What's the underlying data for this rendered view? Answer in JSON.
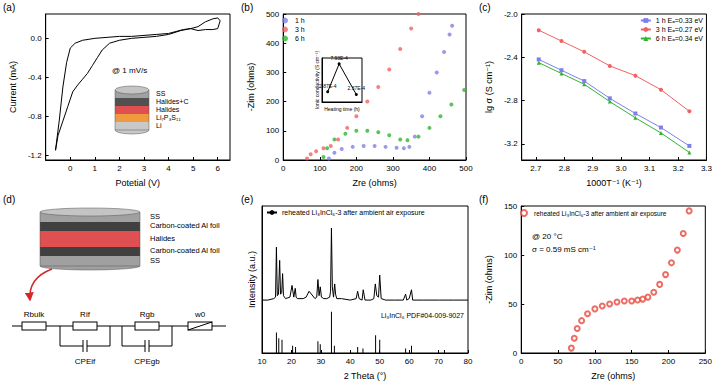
{
  "chart_data": [
    {
      "label": "(a)",
      "type": "line",
      "x_label": "Potetial (V)",
      "y_label": "Current (mA)",
      "xlim": [
        -1,
        6.5
      ],
      "xticks": [
        0,
        1,
        2,
        3,
        4,
        5,
        6
      ],
      "ylim": [
        -1.25,
        0.25
      ],
      "yticks": [
        -1.2,
        -0.8,
        -0.4,
        {
          "value": 0,
          "label": "0.0"
        }
      ],
      "annotations": [
        "@ 1 mV/s"
      ],
      "series": [
        {
          "color": "#000000",
          "x": [
            -0.6,
            -0.45,
            -0.3,
            -0.15,
            0,
            0.2,
            0.5,
            1,
            1.5,
            2,
            2.5,
            3,
            3.5,
            4,
            4.3,
            4.6,
            4.9,
            5.2,
            5.5,
            5.8,
            6.0,
            6.1,
            6.0,
            5.8,
            5.5,
            5.2,
            4.9,
            4.5,
            4,
            3.5,
            3,
            2.5,
            2,
            1.6,
            1.3,
            1.1,
            0.9,
            0.7,
            0.5,
            0.3,
            0.1,
            -0.1,
            -0.3,
            -0.5,
            -0.6
          ],
          "values": [
            -1.15,
            -0.85,
            -0.5,
            -0.25,
            -0.1,
            -0.05,
            -0.02,
            0,
            0.01,
            0.02,
            0.02,
            0.03,
            0.04,
            0.05,
            0.07,
            0.09,
            0.1,
            0.12,
            0.17,
            0.2,
            0.21,
            0.18,
            0.1,
            0.09,
            0.09,
            0.08,
            0.1,
            0.08,
            0.04,
            0.02,
            0.01,
            0,
            -0.02,
            -0.05,
            -0.12,
            -0.2,
            -0.28,
            -0.36,
            -0.42,
            -0.48,
            -0.55,
            -0.7,
            -0.85,
            -1.0,
            -1.15
          ]
        }
      ]
    },
    {
      "label": "(b)",
      "type": "scatter",
      "x_label": "Zre (ohms)",
      "y_label": "-Zim (ohms)",
      "xlim": [
        0,
        500
      ],
      "xticks": [
        0,
        100,
        200,
        300,
        400,
        500
      ],
      "ylim": [
        0,
        500
      ],
      "yticks": [
        0,
        100,
        200,
        300,
        400,
        500
      ],
      "legend": "upper left",
      "series": [
        {
          "name": "1 h",
          "color": "#7f7fea",
          "marker": "circle",
          "x": [
            125,
            140,
            160,
            190,
            220,
            250,
            280,
            310,
            330,
            345,
            360,
            380,
            400,
            420,
            440,
            455,
            462
          ],
          "values": [
            5,
            25,
            38,
            45,
            48,
            48,
            45,
            42,
            40,
            45,
            80,
            150,
            230,
            300,
            370,
            430,
            460
          ]
        },
        {
          "name": "3 h",
          "color": "#f26161",
          "marker": "circle",
          "x": [
            65,
            75,
            90,
            110,
            130,
            150,
            175,
            200,
            230,
            260,
            290,
            320,
            350,
            370
          ],
          "values": [
            5,
            20,
            30,
            40,
            48,
            70,
            110,
            150,
            200,
            250,
            310,
            380,
            450,
            500
          ]
        },
        {
          "name": "6 h",
          "color": "#2fb52f",
          "marker": "circle",
          "x": [
            110,
            120,
            140,
            170,
            200,
            230,
            260,
            290,
            320,
            340,
            370,
            400,
            430,
            460,
            495
          ],
          "values": [
            10,
            40,
            70,
            90,
            100,
            100,
            95,
            85,
            70,
            68,
            80,
            110,
            150,
            190,
            240
          ]
        }
      ],
      "inset": {
        "type": "line",
        "x_label": "Heating time (h)",
        "y_label": "Ionic conductivity (S cm⁻¹)",
        "xlim": [
          0,
          7
        ],
        "ylim": [
          0.0001,
          0.0009
        ],
        "tick_labels": false,
        "data_labels": true,
        "series": [
          {
            "color": "#000000",
            "marker": "circle",
            "x": [
              1,
              3,
              6
            ],
            "values": [
              0.000287,
              0.000793,
              0.000237
            ],
            "value_labels": [
              "2.87E-4",
              "7.93E-4",
              "2.37E-4"
            ]
          }
        ]
      }
    },
    {
      "label": "(c)",
      "type": "line",
      "x_label": "1000T⁻¹ (K⁻¹)",
      "y_label": "lg σ (S cm⁻¹)",
      "xlim": [
        2.65,
        3.3
      ],
      "xticks": [
        2.7,
        2.8,
        2.9,
        {
          "value": 3,
          "label": "3.0"
        },
        3.1,
        3.2,
        3.3
      ],
      "ylim": [
        -3.35,
        -2.0
      ],
      "yticks": [
        -3.2,
        -2.8,
        -2.4,
        {
          "value": -2,
          "label": "-2.0"
        }
      ],
      "legend": "upper right",
      "series": [
        {
          "name": "1 h Eₐ=0.33 eV",
          "color": "#7f7fea",
          "marker": "square",
          "x": [
            2.71,
            2.79,
            2.87,
            2.96,
            3.05,
            3.14,
            3.24
          ],
          "values": [
            -2.42,
            -2.52,
            -2.62,
            -2.78,
            -2.92,
            -3.05,
            -3.22
          ]
        },
        {
          "name": "3 h Eₐ=0.27 eV",
          "color": "#f26161",
          "marker": "circle",
          "x": [
            2.71,
            2.79,
            2.87,
            2.96,
            3.05,
            3.14,
            3.24
          ],
          "values": [
            -2.15,
            -2.25,
            -2.35,
            -2.48,
            -2.57,
            -2.7,
            -2.9
          ]
        },
        {
          "name": "6 h Eₐ=0.34 eV",
          "color": "#2fb52f",
          "marker": "triangle",
          "x": [
            2.71,
            2.79,
            2.87,
            2.96,
            3.05,
            3.14,
            3.24
          ],
          "values": [
            -2.45,
            -2.55,
            -2.65,
            -2.81,
            -2.96,
            -3.1,
            -3.28
          ]
        }
      ]
    },
    {
      "label": "(e)",
      "type": "line",
      "x_label": "2 Theta (°)",
      "y_label": "Intensity (a.u.)",
      "xlim": [
        10,
        80
      ],
      "xticks": [
        10,
        20,
        30,
        40,
        50,
        60,
        70,
        80
      ],
      "ylim": [
        0,
        100
      ],
      "tick_labels": "x",
      "legend": "upper left",
      "series": [
        {
          "name": "reheated Li₃InCl₆-3 after ambient air exposure",
          "color": "#000000",
          "x": [
            10,
            12,
            14,
            14.6,
            14.9,
            15.2,
            15.6,
            16,
            16.3,
            16.7,
            17,
            17.3,
            18,
            19.5,
            20.2,
            20.8,
            21.3,
            21.6,
            22,
            24,
            25,
            26,
            28,
            28.6,
            29,
            29.4,
            29.8,
            30.2,
            31,
            32,
            33,
            33.3,
            33.6,
            33.9,
            34.3,
            34.7,
            35,
            35.4,
            37,
            40,
            42,
            42.5,
            43,
            44,
            44.4,
            45,
            47,
            48,
            48.5,
            49,
            49.6,
            50,
            50.5,
            52,
            55,
            58,
            58.8,
            59.2,
            60,
            60.8,
            61.2,
            62,
            65,
            70,
            75,
            80
          ],
          "values": [
            36,
            36,
            37,
            38,
            72,
            39,
            40,
            63,
            40,
            41,
            54,
            39,
            37,
            38,
            46,
            38,
            44,
            38,
            37,
            37,
            38,
            42,
            37,
            38,
            50,
            39,
            45,
            38,
            37,
            37,
            38,
            42,
            85,
            45,
            38,
            47,
            40,
            37,
            37,
            36,
            37,
            42,
            37,
            36,
            43,
            36,
            36,
            37,
            47,
            39,
            38,
            53,
            37,
            36,
            36,
            36,
            40,
            36,
            37,
            43,
            36,
            36,
            36,
            36,
            36,
            36
          ]
        },
        {
          "name": "Li₃InCl₆ PDF#04-009-9027",
          "type": "bar",
          "color": "#000000",
          "x": [
            14.9,
            15.7,
            16.8,
            20.4,
            21.4,
            29,
            29.8,
            33.6,
            34.6,
            42.5,
            44.3,
            48.6,
            50,
            58.8,
            60.8,
            72
          ],
          "values": [
            14,
            10,
            9,
            5,
            4,
            8,
            6,
            28,
            5,
            4,
            3,
            12,
            9,
            3,
            5,
            2
          ]
        }
      ]
    },
    {
      "label": "(f)",
      "type": "scatter",
      "x_label": "Zre (ohms)",
      "y_label": "-Zim (ohms)",
      "xlim": [
        0,
        250
      ],
      "xticks": [
        0,
        50,
        100,
        150,
        200,
        250
      ],
      "ylim": [
        0,
        150
      ],
      "yticks": [
        0,
        50,
        100,
        150
      ],
      "legend": "upper left",
      "annotations": [
        "@ 20 °C",
        "σ = 0.59 mS cm⁻¹"
      ],
      "series": [
        {
          "name": "reheated Li₃InCl₆-3 after ambient air exposure",
          "color": "#e8483e",
          "marker": "open_circle",
          "x": [
            68,
            72,
            76,
            82,
            90,
            100,
            110,
            120,
            130,
            140,
            150,
            158,
            165,
            172,
            180,
            188,
            196,
            204,
            212,
            220,
            228
          ],
          "values": [
            5,
            15,
            25,
            33,
            40,
            45,
            48,
            50,
            52,
            53,
            53,
            54,
            55,
            57,
            62,
            70,
            80,
            92,
            105,
            122,
            145
          ]
        }
      ]
    }
  ],
  "diagrams": {
    "a": {
      "layers": [
        "SS",
        "Halides+C",
        "Halides",
        "Li₇P₃S₁₁",
        "Li"
      ]
    },
    "d": {
      "label": "(d)",
      "layers": [
        "SS",
        "Carbon-coated Al foil",
        "Halides",
        "Carbon-coated Al foil",
        "SS"
      ],
      "resistors": [
        "Rbulk",
        "Rif",
        "Rgb",
        "w0"
      ],
      "cpes": [
        "CPEif",
        "CPEgb"
      ]
    }
  }
}
